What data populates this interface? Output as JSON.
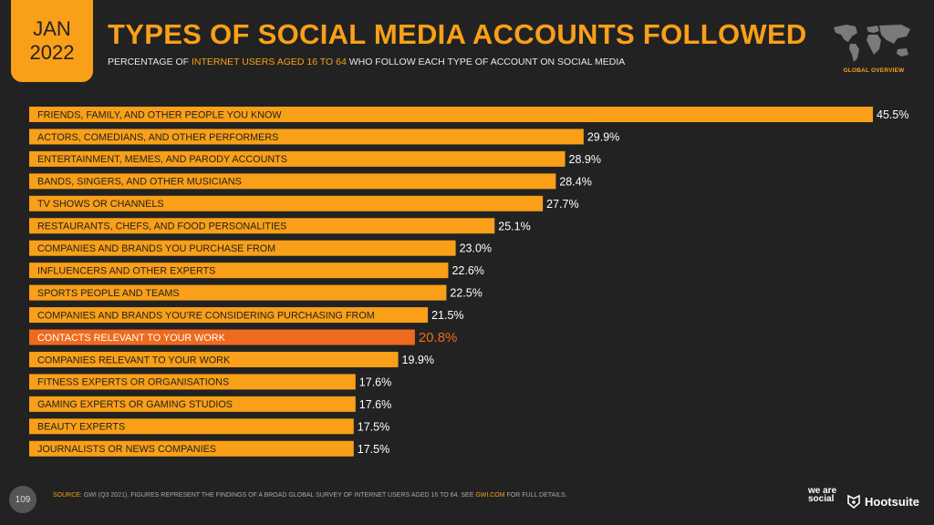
{
  "header": {
    "month": "JAN",
    "year": "2022",
    "title": "TYPES OF SOCIAL MEDIA ACCOUNTS FOLLOWED",
    "subtitle_pre": "PERCENTAGE OF ",
    "subtitle_highlight": "INTERNET USERS AGED 16 TO 64",
    "subtitle_post": " WHO FOLLOW EACH TYPE OF ACCOUNT ON SOCIAL MEDIA",
    "region_label": "GLOBAL OVERVIEW"
  },
  "chart_data": {
    "type": "bar",
    "orientation": "horizontal",
    "categories": [
      "FRIENDS, FAMILY, AND OTHER PEOPLE YOU KNOW",
      "ACTORS, COMEDIANS, AND OTHER PERFORMERS",
      "ENTERTAINMENT, MEMES, AND PARODY ACCOUNTS",
      "BANDS, SINGERS, AND OTHER MUSICIANS",
      "TV SHOWS OR CHANNELS",
      "RESTAURANTS, CHEFS, AND FOOD PERSONALITIES",
      "COMPANIES AND BRANDS YOU PURCHASE FROM",
      "INFLUENCERS AND OTHER EXPERTS",
      "SPORTS PEOPLE AND TEAMS",
      "COMPANIES AND BRANDS YOU’RE CONSIDERING PURCHASING FROM",
      "CONTACTS RELEVANT TO YOUR WORK",
      "COMPANIES RELEVANT TO YOUR WORK",
      "FITNESS EXPERTS OR ORGANISATIONS",
      "GAMING EXPERTS OR GAMING STUDIOS",
      "BEAUTY EXPERTS",
      "JOURNALISTS OR NEWS COMPANIES"
    ],
    "values": [
      45.5,
      29.9,
      28.9,
      28.4,
      27.7,
      25.1,
      23.0,
      22.6,
      22.5,
      21.5,
      20.8,
      19.9,
      17.6,
      17.6,
      17.5,
      17.5
    ],
    "value_labels": [
      "45.5%",
      "29.9%",
      "28.9%",
      "28.4%",
      "27.7%",
      "25.1%",
      "23.0%",
      "22.6%",
      "22.5%",
      "21.5%",
      "20.8%",
      "19.9%",
      "17.6%",
      "17.6%",
      "17.5%",
      "17.5%"
    ],
    "highlighted_category": "CONTACTS RELEVANT TO YOUR WORK",
    "xlim": [
      0,
      45.5
    ],
    "colors": {
      "bar": "#f9a018",
      "highlight": "#ee6a1e"
    }
  },
  "footer": {
    "page_number": "109",
    "source_label": "SOURCE:",
    "source_text": " GWI (Q3 2021). FIGURES REPRESENT THE FINDINGS OF A BROAD GLOBAL SURVEY OF INTERNET USERS AGED 16 TO 64. SEE ",
    "source_link": "GWI.COM",
    "source_end": " FOR FULL DETAILS.",
    "brand_1": "we are social",
    "brand_2": "Hootsuite"
  },
  "colors": {
    "background": "#222222",
    "accent": "#f9a018"
  }
}
